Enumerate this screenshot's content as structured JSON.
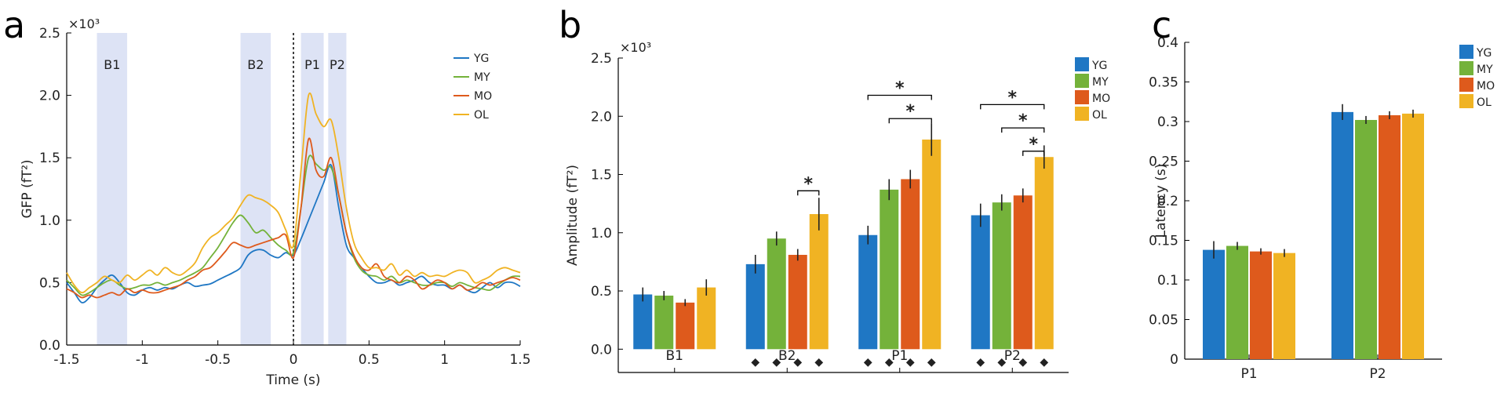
{
  "colors": {
    "YG": "#1f77c4",
    "MY": "#74b23a",
    "MO": "#de5a1c",
    "OL": "#f0b323",
    "band": "#dde3f5"
  },
  "panels": {
    "a": "a",
    "b": "b",
    "c": "c"
  },
  "chart_data": [
    {
      "type": "line",
      "panel": "a",
      "xlabel": "Time (s)",
      "ylabel": "GFP (fT²)",
      "multiplier": "×10³",
      "xlim": [
        -1.5,
        1.5
      ],
      "ylim": [
        0,
        2.5
      ],
      "xticks": [
        -1.5,
        -1,
        -0.5,
        0,
        0.5,
        1,
        1.5
      ],
      "xtick_labels": [
        "-1.5",
        "-1",
        "-0.5",
        "0",
        "0.5",
        "1",
        "1.5"
      ],
      "yticks": [
        0,
        0.5,
        1.0,
        1.5,
        2.0,
        2.5
      ],
      "ytick_labels": [
        "0.0",
        "0.5",
        "1.0",
        "1.5",
        "2.0",
        "2.5"
      ],
      "bands": [
        {
          "label": "B1",
          "from": -1.3,
          "to": -1.1
        },
        {
          "label": "B2",
          "from": -0.35,
          "to": -0.15
        },
        {
          "label": "P1",
          "from": 0.05,
          "to": 0.2
        },
        {
          "label": "P2",
          "from": 0.23,
          "to": 0.35
        }
      ],
      "x": [
        -1.5,
        -1.45,
        -1.4,
        -1.35,
        -1.3,
        -1.25,
        -1.2,
        -1.15,
        -1.1,
        -1.05,
        -1.0,
        -0.95,
        -0.9,
        -0.85,
        -0.8,
        -0.75,
        -0.7,
        -0.65,
        -0.6,
        -0.55,
        -0.5,
        -0.45,
        -0.4,
        -0.35,
        -0.3,
        -0.25,
        -0.2,
        -0.15,
        -0.1,
        -0.05,
        0.0,
        0.05,
        0.1,
        0.15,
        0.2,
        0.25,
        0.3,
        0.35,
        0.4,
        0.45,
        0.5,
        0.55,
        0.6,
        0.65,
        0.7,
        0.75,
        0.8,
        0.85,
        0.9,
        0.95,
        1.0,
        1.05,
        1.1,
        1.15,
        1.2,
        1.25,
        1.3,
        1.35,
        1.4,
        1.45,
        1.5
      ],
      "series": [
        {
          "name": "YG",
          "values": [
            0.5,
            0.42,
            0.34,
            0.38,
            0.46,
            0.52,
            0.56,
            0.5,
            0.42,
            0.4,
            0.44,
            0.46,
            0.44,
            0.46,
            0.45,
            0.48,
            0.5,
            0.47,
            0.48,
            0.49,
            0.52,
            0.55,
            0.58,
            0.62,
            0.72,
            0.76,
            0.76,
            0.72,
            0.7,
            0.74,
            0.72,
            0.85,
            1.0,
            1.15,
            1.3,
            1.44,
            1.1,
            0.8,
            0.7,
            0.62,
            0.55,
            0.5,
            0.5,
            0.52,
            0.48,
            0.5,
            0.52,
            0.55,
            0.5,
            0.48,
            0.48,
            0.45,
            0.48,
            0.44,
            0.42,
            0.46,
            0.5,
            0.46,
            0.5,
            0.5,
            0.47
          ]
        },
        {
          "name": "MY",
          "values": [
            0.52,
            0.46,
            0.4,
            0.42,
            0.46,
            0.5,
            0.52,
            0.48,
            0.45,
            0.46,
            0.48,
            0.48,
            0.5,
            0.48,
            0.5,
            0.52,
            0.55,
            0.58,
            0.62,
            0.7,
            0.78,
            0.88,
            0.98,
            1.04,
            0.98,
            0.9,
            0.92,
            0.86,
            0.8,
            0.76,
            0.74,
            1.1,
            1.5,
            1.45,
            1.4,
            1.42,
            1.2,
            0.9,
            0.7,
            0.6,
            0.56,
            0.55,
            0.52,
            0.55,
            0.5,
            0.52,
            0.5,
            0.48,
            0.48,
            0.5,
            0.5,
            0.47,
            0.5,
            0.48,
            0.46,
            0.45,
            0.44,
            0.48,
            0.52,
            0.55,
            0.55
          ]
        },
        {
          "name": "MO",
          "values": [
            0.45,
            0.42,
            0.38,
            0.4,
            0.38,
            0.4,
            0.42,
            0.4,
            0.45,
            0.42,
            0.44,
            0.42,
            0.42,
            0.44,
            0.46,
            0.48,
            0.52,
            0.55,
            0.6,
            0.62,
            0.68,
            0.75,
            0.82,
            0.8,
            0.78,
            0.8,
            0.82,
            0.84,
            0.86,
            0.88,
            0.7,
            1.1,
            1.65,
            1.4,
            1.35,
            1.5,
            1.2,
            0.9,
            0.72,
            0.62,
            0.6,
            0.65,
            0.55,
            0.52,
            0.5,
            0.55,
            0.52,
            0.45,
            0.48,
            0.52,
            0.5,
            0.45,
            0.48,
            0.44,
            0.46,
            0.5,
            0.48,
            0.5,
            0.52,
            0.54,
            0.52
          ]
        },
        {
          "name": "OL",
          "values": [
            0.58,
            0.48,
            0.42,
            0.46,
            0.5,
            0.55,
            0.52,
            0.5,
            0.56,
            0.52,
            0.56,
            0.6,
            0.56,
            0.62,
            0.58,
            0.56,
            0.6,
            0.66,
            0.78,
            0.86,
            0.9,
            0.96,
            1.02,
            1.12,
            1.2,
            1.18,
            1.16,
            1.12,
            1.06,
            0.92,
            0.8,
            1.4,
            2.0,
            1.85,
            1.75,
            1.8,
            1.5,
            1.1,
            0.82,
            0.7,
            0.62,
            0.62,
            0.6,
            0.65,
            0.56,
            0.6,
            0.55,
            0.58,
            0.55,
            0.56,
            0.55,
            0.58,
            0.6,
            0.58,
            0.5,
            0.52,
            0.55,
            0.6,
            0.62,
            0.6,
            0.58
          ]
        }
      ],
      "legend_loc": "top-right"
    },
    {
      "type": "bar",
      "panel": "b",
      "ylabel": "Amplitude (fT²)",
      "multiplier": "×10³",
      "ylim": [
        -0.2,
        2.5
      ],
      "yticks": [
        0.0,
        0.5,
        1.0,
        1.5,
        2.0,
        2.5
      ],
      "ytick_labels": [
        "0.0",
        "0.5",
        "1.0",
        "1.5",
        "2.0",
        "2.5"
      ],
      "categories": [
        "B1",
        "B2",
        "P1",
        "P2"
      ],
      "series": [
        {
          "name": "YG",
          "values": [
            0.47,
            0.73,
            0.98,
            1.15
          ],
          "errors": [
            0.06,
            0.08,
            0.08,
            0.1
          ]
        },
        {
          "name": "MY",
          "values": [
            0.46,
            0.95,
            1.37,
            1.26
          ],
          "errors": [
            0.04,
            0.06,
            0.09,
            0.07
          ]
        },
        {
          "name": "MO",
          "values": [
            0.4,
            0.81,
            1.46,
            1.32
          ],
          "errors": [
            0.03,
            0.05,
            0.08,
            0.06
          ]
        },
        {
          "name": "OL",
          "values": [
            0.53,
            1.16,
            1.8,
            1.65
          ],
          "errors": [
            0.07,
            0.14,
            0.14,
            0.1
          ]
        }
      ],
      "significance": [
        {
          "category": 1,
          "from": 2,
          "to": 3,
          "label": "*",
          "y": 1.36
        },
        {
          "category": 2,
          "from": 0,
          "to": 3,
          "label": "*",
          "y": 2.18
        },
        {
          "category": 2,
          "from": 1,
          "to": 3,
          "label": "*",
          "y": 1.98
        },
        {
          "category": 3,
          "from": 0,
          "to": 3,
          "label": "*",
          "y": 2.1
        },
        {
          "category": 3,
          "from": 1,
          "to": 3,
          "label": "*",
          "y": 1.9
        },
        {
          "category": 3,
          "from": 2,
          "to": 3,
          "label": "*",
          "y": 1.7
        }
      ],
      "markers": {
        "symbol": "◆",
        "categories": [
          1,
          2,
          3
        ]
      },
      "legend_loc": "top-right"
    },
    {
      "type": "bar",
      "panel": "c",
      "ylabel": "Latency (s)",
      "ylim": [
        0,
        0.4
      ],
      "yticks": [
        0,
        0.05,
        0.1,
        0.15,
        0.2,
        0.25,
        0.3,
        0.35,
        0.4
      ],
      "ytick_labels": [
        "0",
        "0.05",
        "0.1",
        "0.15",
        "0.2",
        "0.25",
        "0.3",
        "0.35",
        "0.4"
      ],
      "categories": [
        "P1",
        "P2"
      ],
      "series": [
        {
          "name": "YG",
          "values": [
            0.138,
            0.312
          ],
          "errors": [
            0.011,
            0.01
          ]
        },
        {
          "name": "MY",
          "values": [
            0.143,
            0.302
          ],
          "errors": [
            0.005,
            0.005
          ]
        },
        {
          "name": "MO",
          "values": [
            0.136,
            0.308
          ],
          "errors": [
            0.004,
            0.005
          ]
        },
        {
          "name": "OL",
          "values": [
            0.134,
            0.31
          ],
          "errors": [
            0.005,
            0.005
          ]
        }
      ],
      "legend_loc": "top-right"
    }
  ]
}
